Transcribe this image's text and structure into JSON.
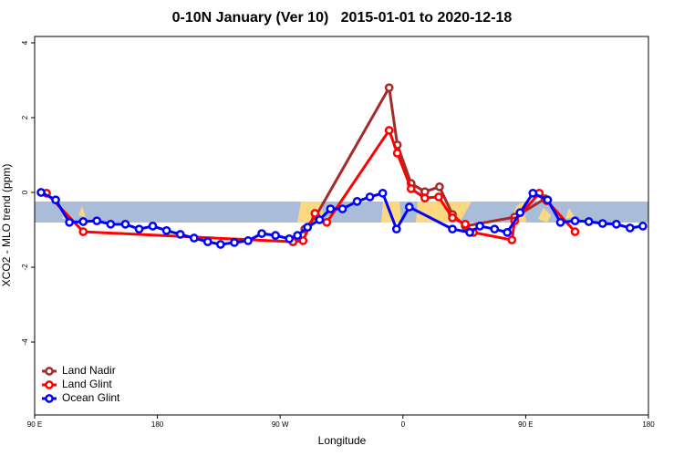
{
  "chart_data": {
    "type": "line",
    "title": "0-10N January (Ver 10)   2015-01-01 to 2020-12-18",
    "xlabel": "Longitude",
    "ylabel": "XCO2 - MLO trend (ppm)",
    "xlim": [
      90,
      540
    ],
    "ylim": [
      -5.95,
      4.17
    ],
    "xticks": [
      {
        "value": 90,
        "label": "90 E"
      },
      {
        "value": 180,
        "label": "180"
      },
      {
        "value": 270,
        "label": "90 W"
      },
      {
        "value": 360,
        "label": "0"
      },
      {
        "value": 450,
        "label": "90 E"
      },
      {
        "value": 540,
        "label": "180"
      }
    ],
    "yticks": [
      4,
      2,
      0,
      -2,
      -4
    ],
    "legend": "bottomleft",
    "series": [
      {
        "name": "Land Nadir",
        "color": "#a52a2a",
        "x": [
          288.1,
          296.2,
          349.9,
          355.9,
          366,
          376.1,
          386.8,
          396.3,
          405.7,
          441.9,
          464.1
        ],
        "values": [
          -0.98,
          -0.63,
          2.8,
          1.27,
          0.24,
          0.02,
          0.15,
          -0.59,
          -0.9,
          -0.66,
          -0.17
        ]
      },
      {
        "name": "Land Glint",
        "color": "#ff0000",
        "x": [
          98.7,
          125.6,
          279.4,
          286.8,
          295.5,
          304.2,
          349.9,
          355.9,
          366,
          376.1,
          386.2,
          396.3,
          405.7,
          411.7,
          439.9,
          441.9,
          460,
          465.4,
          486.2
        ],
        "values": [
          -0.02,
          -1.05,
          -1.32,
          -1.29,
          -0.56,
          -0.8,
          1.66,
          1.05,
          0.1,
          -0.15,
          -0.12,
          -0.68,
          -0.85,
          -1.07,
          -1.27,
          -0.76,
          -0.02,
          -0.22,
          -1.05
        ]
      },
      {
        "name": "Ocean Glint",
        "color": "#0000ff",
        "x": [
          94.7,
          105.4,
          115.5,
          125.6,
          135.6,
          145.7,
          156.5,
          166.6,
          176.6,
          186.7,
          196.8,
          206.9,
          216.9,
          226.3,
          236.4,
          246.5,
          256.5,
          266.6,
          276.7,
          282.7,
          290.1,
          298.9,
          306.9,
          315.7,
          326.4,
          335.8,
          345.2,
          355.3,
          364.7,
          396.3,
          409,
          416.4,
          427.2,
          436.5,
          445.9,
          455.3,
          466.1,
          475.5,
          486.2,
          496.3,
          506.4,
          516.5,
          526.5,
          535.9
        ],
        "values": [
          0,
          -0.2,
          -0.8,
          -0.78,
          -0.76,
          -0.85,
          -0.85,
          -0.98,
          -0.9,
          -1.02,
          -1.12,
          -1.22,
          -1.32,
          -1.39,
          -1.34,
          -1.29,
          -1.1,
          -1.15,
          -1.24,
          -1.15,
          -0.93,
          -0.73,
          -0.44,
          -0.44,
          -0.24,
          -0.12,
          -0.02,
          -0.98,
          -0.39,
          -0.98,
          -1.07,
          -0.9,
          -0.98,
          -1.07,
          -0.54,
          -0.02,
          -0.2,
          -0.8,
          -0.76,
          -0.78,
          -0.83,
          -0.85,
          -0.95,
          -0.9
        ]
      }
    ]
  }
}
